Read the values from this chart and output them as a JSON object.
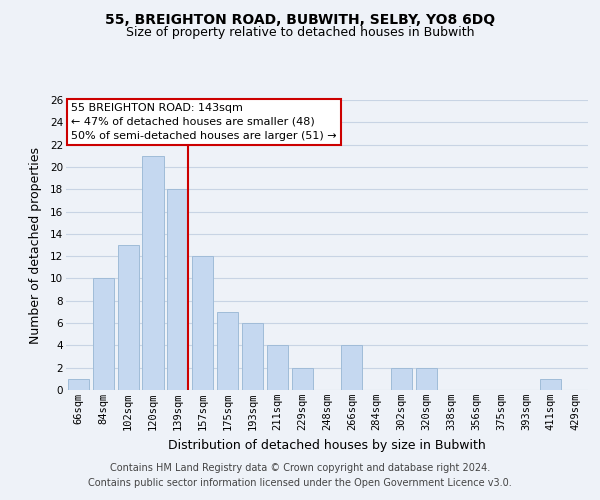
{
  "title": "55, BREIGHTON ROAD, BUBWITH, SELBY, YO8 6DQ",
  "subtitle": "Size of property relative to detached houses in Bubwith",
  "xlabel": "Distribution of detached houses by size in Bubwith",
  "ylabel": "Number of detached properties",
  "categories": [
    "66sqm",
    "84sqm",
    "102sqm",
    "120sqm",
    "139sqm",
    "157sqm",
    "175sqm",
    "193sqm",
    "211sqm",
    "229sqm",
    "248sqm",
    "266sqm",
    "284sqm",
    "302sqm",
    "320sqm",
    "338sqm",
    "356sqm",
    "375sqm",
    "393sqm",
    "411sqm",
    "429sqm"
  ],
  "values": [
    1,
    10,
    13,
    21,
    18,
    12,
    7,
    6,
    4,
    2,
    0,
    4,
    0,
    2,
    2,
    0,
    0,
    0,
    0,
    1,
    0
  ],
  "bar_color": "#c5d8f0",
  "bar_edgecolor": "#a0bcd8",
  "vline_x_index": 4,
  "vline_color": "#cc0000",
  "annotation_title": "55 BREIGHTON ROAD: 143sqm",
  "annotation_line1": "← 47% of detached houses are smaller (48)",
  "annotation_line2": "50% of semi-detached houses are larger (51) →",
  "annotation_box_edgecolor": "#cc0000",
  "ylim": [
    0,
    26
  ],
  "yticks": [
    0,
    2,
    4,
    6,
    8,
    10,
    12,
    14,
    16,
    18,
    20,
    22,
    24,
    26
  ],
  "footer1": "Contains HM Land Registry data © Crown copyright and database right 2024.",
  "footer2": "Contains public sector information licensed under the Open Government Licence v3.0.",
  "bg_color": "#eef2f8",
  "grid_color": "#c8d4e4",
  "title_fontsize": 10,
  "subtitle_fontsize": 9,
  "axis_label_fontsize": 9,
  "tick_fontsize": 7.5,
  "footer_fontsize": 7,
  "annotation_fontsize": 8
}
